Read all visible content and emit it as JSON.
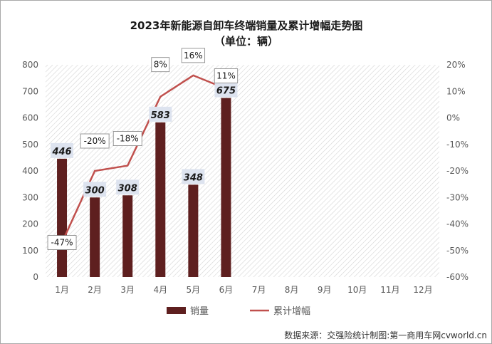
{
  "chart_data": {
    "type": "bar",
    "title": "2023年新能源自卸车终端销量及累计增幅走势图",
    "subtitle": "（单位：辆）",
    "categories": [
      "1月",
      "2月",
      "3月",
      "4月",
      "5月",
      "6月",
      "7月",
      "8月",
      "9月",
      "10月",
      "11月",
      "12月"
    ],
    "series": [
      {
        "name": "销量",
        "type": "bar",
        "axis": "left",
        "color": "#5e1f1f",
        "values": [
          446,
          300,
          308,
          583,
          348,
          675,
          null,
          null,
          null,
          null,
          null,
          null
        ],
        "labels": [
          "446",
          "300",
          "308",
          "583",
          "348",
          "675",
          "",
          "",
          "",
          "",
          "",
          ""
        ]
      },
      {
        "name": "累计增幅",
        "type": "line",
        "axis": "right",
        "color": "#c0504d",
        "values": [
          -47,
          -20,
          -18,
          8,
          16,
          11,
          null,
          null,
          null,
          null,
          null,
          null
        ],
        "labels": [
          "-47%",
          "-20%",
          "-18%",
          "8%",
          "16%",
          "11%",
          "",
          "",
          "",
          "",
          "",
          ""
        ]
      }
    ],
    "left_axis": {
      "ylim": [
        0,
        800
      ],
      "ticks": [
        "0",
        "100",
        "200",
        "300",
        "400",
        "500",
        "600",
        "700",
        "800"
      ]
    },
    "right_axis": {
      "ylim": [
        -60,
        20
      ],
      "ticks": [
        "-60%",
        "-50%",
        "-40%",
        "-30%",
        "-20%",
        "-10%",
        "0%",
        "10%",
        "20%"
      ]
    },
    "legend": {
      "position": "bottom",
      "items": [
        "销量",
        "累计增幅"
      ]
    },
    "plot_background": "hatched",
    "source": "数据来源：交强险统计制图:第一商用车网cvworld.cn"
  }
}
